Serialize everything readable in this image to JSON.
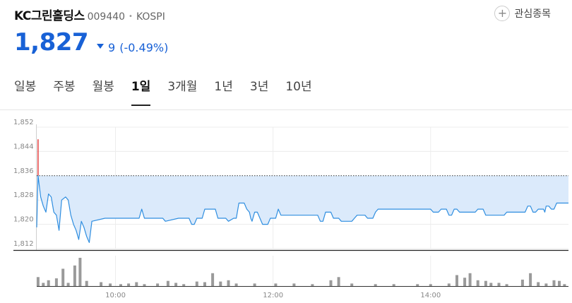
{
  "stock": {
    "name": "KC그린홀딩스",
    "code": "009440",
    "market": "KOSPI",
    "price": "1,827",
    "change": "9",
    "change_pct": "(-0.49%)"
  },
  "favorite": {
    "label": "관심종목",
    "icon": "plus-icon"
  },
  "tabs": [
    {
      "label": "일봉",
      "active": false
    },
    {
      "label": "주봉",
      "active": false
    },
    {
      "label": "월봉",
      "active": false
    },
    {
      "label": "1일",
      "active": true
    },
    {
      "label": "3개월",
      "active": false
    },
    {
      "label": "1년",
      "active": false
    },
    {
      "label": "3년",
      "active": false
    },
    {
      "label": "10년",
      "active": false
    }
  ],
  "colors": {
    "accent": "#1861d6",
    "line": "#2f8ee0",
    "fill": "#dbeafb",
    "up": "#e23b3b",
    "volume": "#9a9a9a"
  },
  "chart_data": {
    "type": "area",
    "y_ticks": [
      "1,852",
      "1,844",
      "1,836",
      "1,828",
      "1,820",
      "1,812"
    ],
    "x_ticks": [
      "10:00",
      "12:00",
      "14:00"
    ],
    "ylim": [
      1812,
      1852
    ],
    "prev_close": 1836,
    "time_range_min": [
      0,
      405
    ],
    "price_series": [
      [
        0,
        1819
      ],
      [
        1,
        1836
      ],
      [
        3,
        1829
      ],
      [
        5,
        1826
      ],
      [
        7,
        1824
      ],
      [
        9,
        1830
      ],
      [
        11,
        1829
      ],
      [
        13,
        1824
      ],
      [
        15,
        1823
      ],
      [
        17,
        1818
      ],
      [
        19,
        1828
      ],
      [
        22,
        1829
      ],
      [
        24,
        1828
      ],
      [
        26,
        1823
      ],
      [
        28,
        1820
      ],
      [
        30,
        1818
      ],
      [
        32,
        1815
      ],
      [
        34,
        1821
      ],
      [
        36,
        1819
      ],
      [
        38,
        1816
      ],
      [
        40,
        1814
      ],
      [
        42,
        1821
      ],
      [
        52,
        1822
      ],
      [
        78,
        1822
      ],
      [
        80,
        1825
      ],
      [
        82,
        1822
      ],
      [
        96,
        1822
      ],
      [
        98,
        1821
      ],
      [
        108,
        1822
      ],
      [
        116,
        1822
      ],
      [
        118,
        1820
      ],
      [
        120,
        1820
      ],
      [
        122,
        1822
      ],
      [
        126,
        1822
      ],
      [
        128,
        1825
      ],
      [
        136,
        1825
      ],
      [
        138,
        1822
      ],
      [
        144,
        1822
      ],
      [
        146,
        1821
      ],
      [
        150,
        1822
      ],
      [
        152,
        1822
      ],
      [
        154,
        1827
      ],
      [
        158,
        1827
      ],
      [
        160,
        1825
      ],
      [
        162,
        1824
      ],
      [
        163,
        1822
      ],
      [
        164,
        1821
      ],
      [
        166,
        1824
      ],
      [
        168,
        1824
      ],
      [
        170,
        1822
      ],
      [
        172,
        1820
      ],
      [
        176,
        1820
      ],
      [
        178,
        1822
      ],
      [
        182,
        1822
      ],
      [
        184,
        1825
      ],
      [
        186,
        1823
      ],
      [
        194,
        1823
      ],
      [
        198,
        1823
      ],
      [
        200,
        1823
      ],
      [
        202,
        1823
      ],
      [
        204,
        1823
      ],
      [
        206,
        1823
      ],
      [
        210,
        1823
      ],
      [
        214,
        1823
      ],
      [
        216,
        1821
      ],
      [
        218,
        1821
      ],
      [
        220,
        1824
      ],
      [
        224,
        1824
      ],
      [
        226,
        1822
      ],
      [
        230,
        1822
      ],
      [
        232,
        1821
      ],
      [
        240,
        1821
      ],
      [
        242,
        1822
      ],
      [
        244,
        1823
      ],
      [
        250,
        1823
      ],
      [
        252,
        1822
      ],
      [
        256,
        1822
      ],
      [
        258,
        1824
      ],
      [
        260,
        1825
      ],
      [
        270,
        1825
      ],
      [
        272,
        1825
      ],
      [
        280,
        1825
      ],
      [
        290,
        1825
      ],
      [
        300,
        1825
      ],
      [
        302,
        1824
      ],
      [
        306,
        1824
      ],
      [
        308,
        1825
      ],
      [
        312,
        1825
      ],
      [
        314,
        1823
      ],
      [
        316,
        1823
      ],
      [
        318,
        1825
      ],
      [
        320,
        1825
      ],
      [
        322,
        1824
      ],
      [
        328,
        1824
      ],
      [
        334,
        1824
      ],
      [
        336,
        1825
      ],
      [
        340,
        1825
      ],
      [
        342,
        1823
      ],
      [
        346,
        1823
      ],
      [
        348,
        1823
      ],
      [
        350,
        1823
      ],
      [
        356,
        1823
      ],
      [
        358,
        1824
      ],
      [
        372,
        1824
      ],
      [
        374,
        1826
      ],
      [
        376,
        1826
      ],
      [
        378,
        1824
      ],
      [
        380,
        1824
      ],
      [
        382,
        1825
      ],
      [
        386,
        1825
      ],
      [
        387,
        1824
      ],
      [
        388,
        1826
      ],
      [
        390,
        1826
      ],
      [
        392,
        1825
      ],
      [
        394,
        1825
      ],
      [
        396,
        1827
      ],
      [
        405,
        1827
      ]
    ],
    "early_high": {
      "t": 1,
      "high": 1848,
      "low": 1836
    },
    "volume": [
      {
        "t": 1,
        "v": 14
      },
      {
        "t": 5,
        "v": 5
      },
      {
        "t": 9,
        "v": 9
      },
      {
        "t": 15,
        "v": 12
      },
      {
        "t": 20,
        "v": 27
      },
      {
        "t": 24,
        "v": 5
      },
      {
        "t": 29,
        "v": 32
      },
      {
        "t": 33,
        "v": 44
      },
      {
        "t": 38,
        "v": 8
      },
      {
        "t": 49,
        "v": 6
      },
      {
        "t": 56,
        "v": 4
      },
      {
        "t": 64,
        "v": 3
      },
      {
        "t": 70,
        "v": 4
      },
      {
        "t": 76,
        "v": 6
      },
      {
        "t": 82,
        "v": 3
      },
      {
        "t": 92,
        "v": 4
      },
      {
        "t": 100,
        "v": 8
      },
      {
        "t": 106,
        "v": 5
      },
      {
        "t": 112,
        "v": 3
      },
      {
        "t": 122,
        "v": 7
      },
      {
        "t": 128,
        "v": 6
      },
      {
        "t": 134,
        "v": 20
      },
      {
        "t": 140,
        "v": 7
      },
      {
        "t": 146,
        "v": 9
      },
      {
        "t": 152,
        "v": 4
      },
      {
        "t": 166,
        "v": 4
      },
      {
        "t": 182,
        "v": 4
      },
      {
        "t": 196,
        "v": 4
      },
      {
        "t": 210,
        "v": 3
      },
      {
        "t": 224,
        "v": 9
      },
      {
        "t": 230,
        "v": 14
      },
      {
        "t": 240,
        "v": 4
      },
      {
        "t": 258,
        "v": 3
      },
      {
        "t": 272,
        "v": 3
      },
      {
        "t": 290,
        "v": 3
      },
      {
        "t": 300,
        "v": 3
      },
      {
        "t": 314,
        "v": 4
      },
      {
        "t": 320,
        "v": 17
      },
      {
        "t": 326,
        "v": 13
      },
      {
        "t": 330,
        "v": 20
      },
      {
        "t": 336,
        "v": 9
      },
      {
        "t": 342,
        "v": 8
      },
      {
        "t": 346,
        "v": 5
      },
      {
        "t": 352,
        "v": 5
      },
      {
        "t": 358,
        "v": 3
      },
      {
        "t": 370,
        "v": 10
      },
      {
        "t": 376,
        "v": 20
      },
      {
        "t": 382,
        "v": 6
      },
      {
        "t": 388,
        "v": 4
      },
      {
        "t": 394,
        "v": 9
      },
      {
        "t": 398,
        "v": 8
      },
      {
        "t": 402,
        "v": 3
      },
      {
        "t": 412,
        "v": 16
      }
    ]
  }
}
